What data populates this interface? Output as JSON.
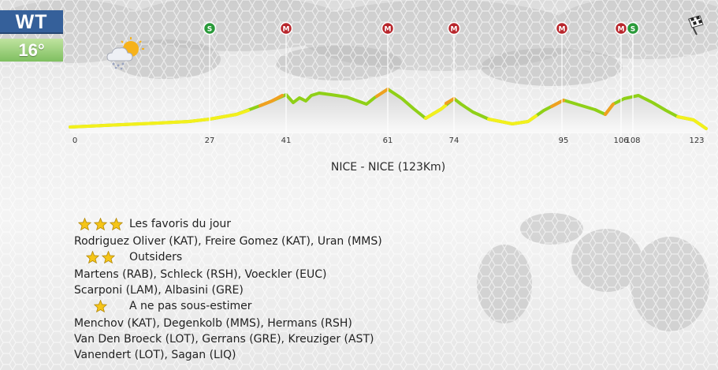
{
  "badges": {
    "race_class": "WT",
    "temperature": "16°"
  },
  "icons": {
    "weather": "cloud-sun-snow-icon",
    "finish": "checkered-flag-icon",
    "markers": [
      "sprint-marker-icon",
      "mountain-marker-icon"
    ]
  },
  "colors": {
    "wt_blue": "#35609a",
    "temp_green": "#8ac56c",
    "sprint_green": "#2a9a3a",
    "mountain_red": "#b8262c",
    "profile_yellow": "#f3f01c",
    "profile_green": "#8fd017",
    "profile_orange": "#f0a020"
  },
  "profile": {
    "km_labels": [
      "0",
      "27",
      "41",
      "61",
      "74",
      "95",
      "106",
      "108",
      "123"
    ],
    "markers": [
      {
        "letter": "S",
        "type": "sprint",
        "km": 27
      },
      {
        "letter": "M",
        "type": "mountain",
        "km": 41
      },
      {
        "letter": "M",
        "type": "mountain",
        "km": 61
      },
      {
        "letter": "M",
        "type": "mountain",
        "km": 74
      },
      {
        "letter": "M",
        "type": "mountain",
        "km": 95
      },
      {
        "letter": "M",
        "type": "mountain",
        "km": 106
      },
      {
        "letter": "S",
        "type": "sprint",
        "km": 108
      }
    ],
    "total_km": 123
  },
  "stage": {
    "title": "NICE - NICE (123Km)"
  },
  "favorites": [
    {
      "stars": 3,
      "label": "Les favoris du jour",
      "riders": [
        "Rodriguez Oliver (KAT), Freire Gomez (KAT), Uran (MMS)"
      ]
    },
    {
      "stars": 2,
      "label": "Outsiders",
      "riders": [
        "Martens (RAB), Schleck (RSH), Voeckler (EUC)",
        "Scarponi (LAM), Albasini (GRE)"
      ]
    },
    {
      "stars": 1,
      "label": "A ne pas sous-estimer",
      "riders": [
        "Menchov (KAT), Degenkolb (MMS), Hermans (RSH)",
        "Van Den Broeck (LOT), Gerrans (GRE), Kreuziger (AST)",
        "Vanendert (LOT), Sagan (LIQ)"
      ]
    }
  ]
}
